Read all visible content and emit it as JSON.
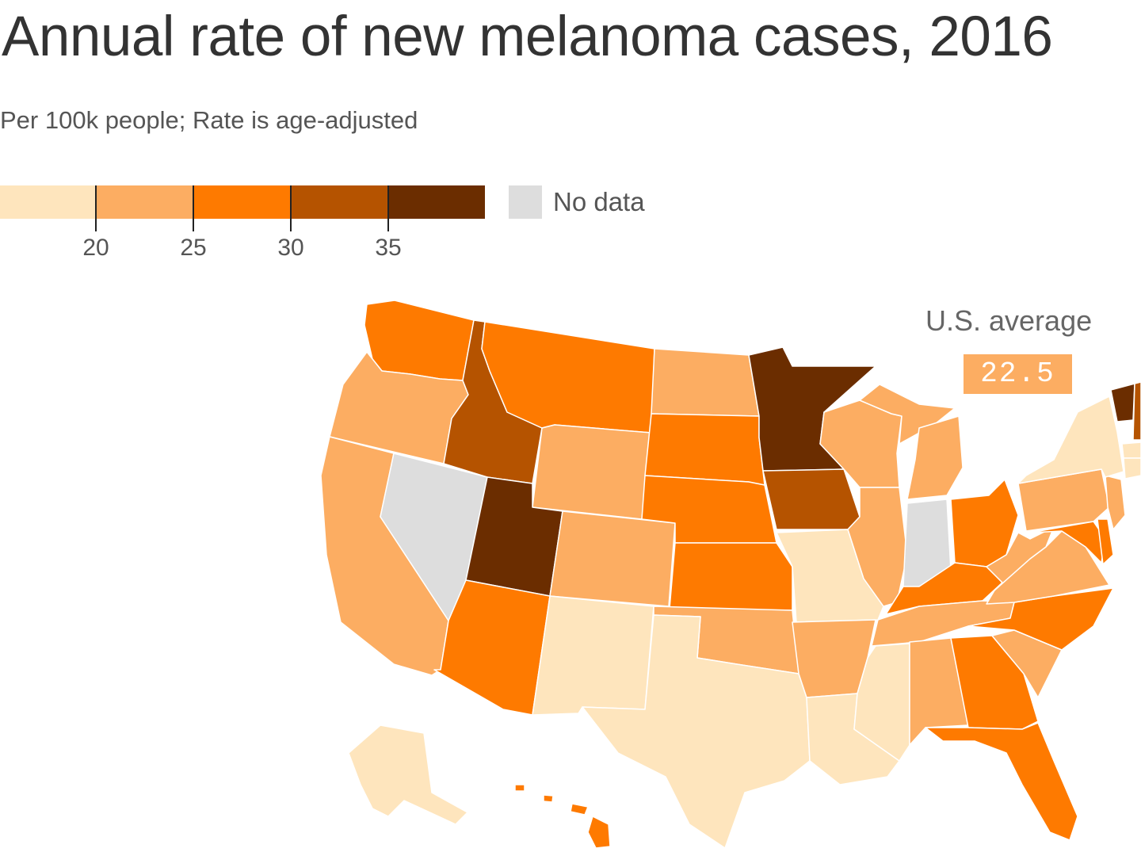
{
  "title": "Annual rate of new melanoma cases, 2016",
  "subtitle": "Per 100k people; Rate is age-adjusted",
  "legend": {
    "bins": [
      {
        "max": 20,
        "color": "#fee5bd"
      },
      {
        "min": 20,
        "max": 25,
        "color": "#fcad62"
      },
      {
        "min": 25,
        "max": 30,
        "color": "#fe7a00"
      },
      {
        "min": 30,
        "max": 35,
        "color": "#b55300"
      },
      {
        "min": 35,
        "color": "#6b2d00"
      }
    ],
    "ticks": [
      "20",
      "25",
      "30",
      "35"
    ],
    "nodata_label": "No data",
    "nodata_color": "#dddddd"
  },
  "us_average": {
    "label": "U.S. average",
    "value": "22.5"
  },
  "states": {
    "WA": "#fe7a00",
    "OR": "#fcad62",
    "CA": "#fcad62",
    "NV": "#dddddd",
    "ID": "#b55300",
    "MT": "#fe7a00",
    "WY": "#fcad62",
    "UT": "#6b2d00",
    "AZ": "#fe7a00",
    "CO": "#fcad62",
    "NM": "#fee5bd",
    "ND": "#fcad62",
    "SD": "#fe7a00",
    "NE": "#fe7a00",
    "KS": "#fe7a00",
    "OK": "#fcad62",
    "TX": "#fee5bd",
    "MN": "#6b2d00",
    "IA": "#b55300",
    "MO": "#fee5bd",
    "AR": "#fcad62",
    "LA": "#fee5bd",
    "WI": "#fcad62",
    "IL": "#fcad62",
    "MI": "#fcad62",
    "IN": "#dddddd",
    "OH": "#fe7a00",
    "KY": "#fe7a00",
    "TN": "#fcad62",
    "MS": "#fee5bd",
    "AL": "#fcad62",
    "GA": "#fe7a00",
    "FL": "#fe7a00",
    "SC": "#fcad62",
    "NC": "#fe7a00",
    "VA": "#fcad62",
    "WV": "#fcad62",
    "PA": "#fcad62",
    "NY": "#fee5bd",
    "MD": "#fe7a00",
    "DE": "#fe7a00",
    "NJ": "#fcad62",
    "VT": "#6b2d00",
    "NH": "#b55300",
    "AK": "#fee5bd",
    "HI": "#fe7a00"
  }
}
